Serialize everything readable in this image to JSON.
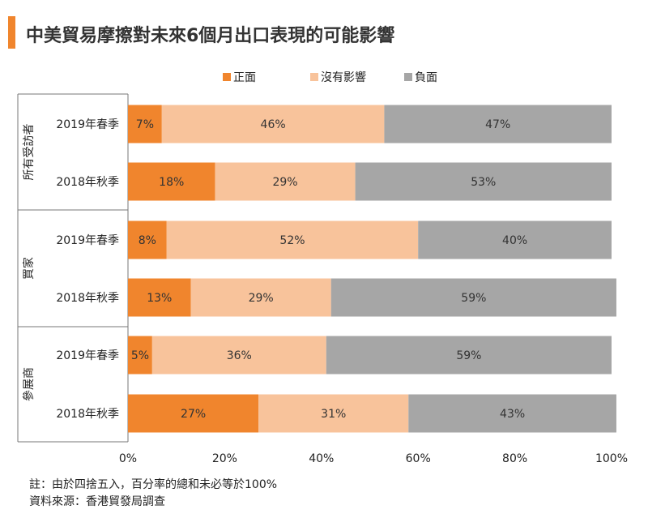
{
  "title": "中美貿易摩擦對未來6個月出口表現的可能影響",
  "colors": {
    "accent": "#f0852d",
    "positive": "#f0852d",
    "neutral": "#f8c39b",
    "negative": "#a6a6a6"
  },
  "chart_data": {
    "type": "bar",
    "orientation": "horizontal",
    "stacked": true,
    "legend_position": "top",
    "xlim": [
      0,
      100
    ],
    "x_ticks": [
      "0%",
      "20%",
      "40%",
      "60%",
      "80%",
      "100%"
    ],
    "grid": false,
    "groups": [
      {
        "label": "所有受訪者",
        "categories": [
          "2019年春季",
          "2018年秋季"
        ]
      },
      {
        "label": "買家",
        "categories": [
          "2019年春季",
          "2018年秋季"
        ]
      },
      {
        "label": "參展商",
        "categories": [
          "2019年春季",
          "2018年秋季"
        ]
      }
    ],
    "series": [
      {
        "name": "正面",
        "color": "#f0852d",
        "values": [
          7,
          18,
          8,
          13,
          5,
          27
        ]
      },
      {
        "name": "沒有影響",
        "color": "#f8c39b",
        "values": [
          46,
          29,
          52,
          29,
          36,
          31
        ]
      },
      {
        "name": "負面",
        "color": "#a6a6a6",
        "values": [
          47,
          53,
          40,
          59,
          59,
          43
        ]
      }
    ]
  },
  "footnote": {
    "note": "註：由於四捨五入，百分率的總和未必等於100%",
    "source": "資料來源：香港貿發局調查"
  }
}
